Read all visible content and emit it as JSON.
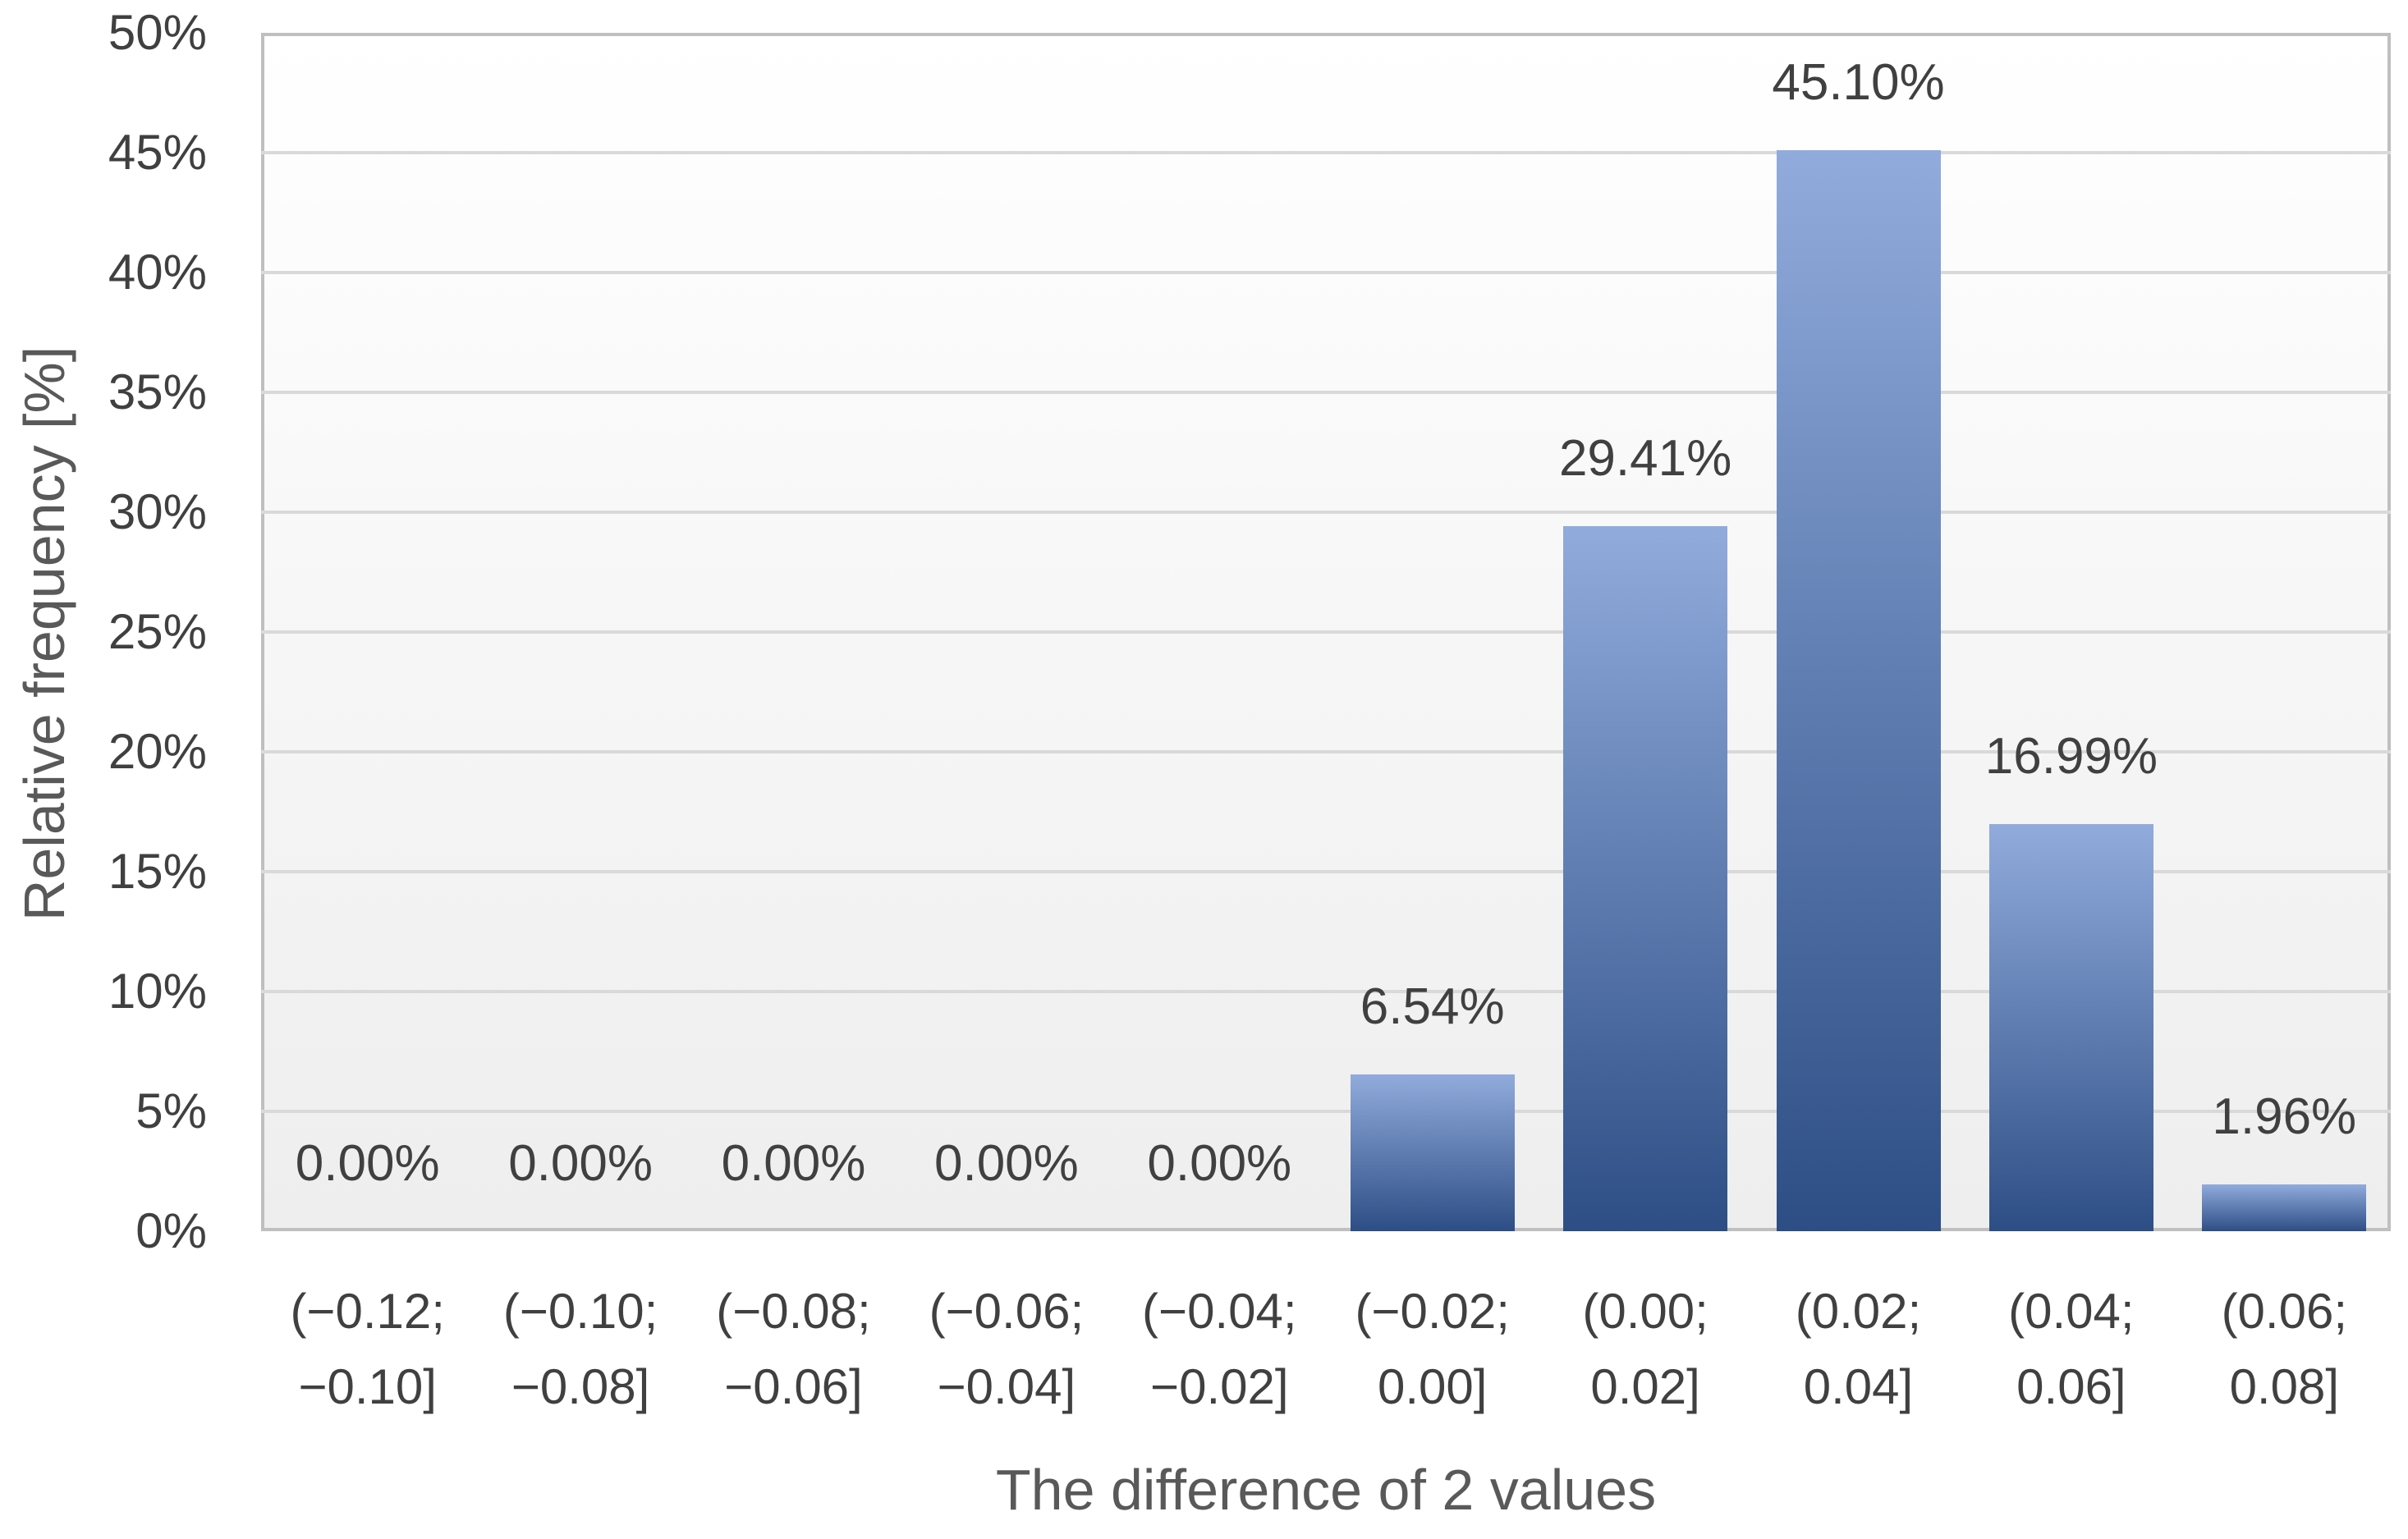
{
  "chart_data": {
    "type": "bar",
    "title": "",
    "xlabel": "The difference of 2 values",
    "ylabel": "Relative frequency [%]",
    "ylim": [
      0,
      50
    ],
    "y_tick_step": 5,
    "y_tick_labels": [
      "0%",
      "5%",
      "10%",
      "15%",
      "20%",
      "25%",
      "30%",
      "35%",
      "40%",
      "45%",
      "50%"
    ],
    "grid": true,
    "legend": false,
    "categories": [
      [
        "(−0.12;",
        "−0.10]"
      ],
      [
        "(−0.10;",
        "−0.08]"
      ],
      [
        "(−0.08;",
        "−0.06]"
      ],
      [
        "(−0.06;",
        "−0.04]"
      ],
      [
        "(−0.04;",
        "−0.02]"
      ],
      [
        "(−0.02;",
        "0.00]"
      ],
      [
        "(0.00;",
        "0.02]"
      ],
      [
        "(0.02;",
        "0.04]"
      ],
      [
        "(0.04;",
        "0.06]"
      ],
      [
        "(0.06;",
        "0.08]"
      ]
    ],
    "values": [
      0,
      0,
      0,
      0,
      0,
      6.54,
      29.41,
      45.1,
      16.99,
      1.96
    ],
    "value_labels": [
      "0.00%",
      "0.00%",
      "0.00%",
      "0.00%",
      "0.00%",
      "6.54%",
      "29.41%",
      "45.10%",
      "16.99%",
      "1.96%"
    ],
    "colors": {
      "bar_gradient_top": "#91abdc",
      "bar_gradient_bottom": "#2d4e85",
      "plot_bg_top": "#ffffff",
      "plot_bg_bottom": "#eeeeee",
      "gridline": "#d9d9d9",
      "plot_border": "#bfbfbf",
      "tick_text": "#404040",
      "axis_title_text": "#595959"
    }
  }
}
